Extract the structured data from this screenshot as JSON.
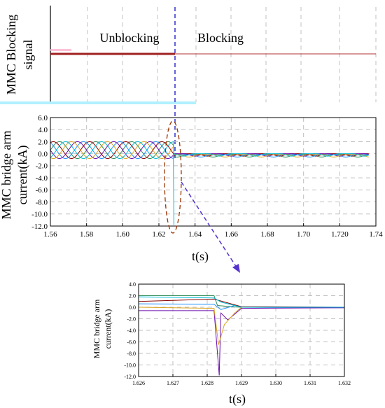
{
  "top_panel": {
    "ylabel_line1": "MMC Blocking",
    "ylabel_line2": "signal",
    "state_unblocking": "Unblocking",
    "state_blocking": "Blocking"
  },
  "colors": {
    "signal_line": "#a02020",
    "blocking_line": "#b03030",
    "blue_marker": "#3333cc",
    "ellipse": "#993300",
    "arrow": "#5533cc",
    "grid": "#c0c0c0",
    "cyan_bar": "#b0f0ff",
    "series": [
      "#2e8b57",
      "#8b0000",
      "#1e90ff",
      "#6a0dad",
      "#daa520",
      "#00bcd4"
    ]
  },
  "chart_data": [
    {
      "type": "line",
      "title": "",
      "xlabel": "t(s)",
      "ylabel_line1": "MMC bridge arm",
      "ylabel_line2": "current(kA)",
      "xlim": [
        1.56,
        1.74
      ],
      "ylim": [
        -12.0,
        6.0
      ],
      "x_ticks": [
        1.56,
        1.58,
        1.6,
        1.62,
        1.64,
        1.66,
        1.68,
        1.7,
        1.72,
        1.74
      ],
      "x_tick_labels": [
        "1.56",
        "1.58",
        "1.60",
        "1.62",
        "1.64",
        "1.66",
        "1.68",
        "1.70",
        "1.720",
        "1.74"
      ],
      "y_ticks": [
        6.0,
        4.0,
        2.0,
        0.0,
        -2.0,
        -4.0,
        -6.0,
        -8.0,
        -10.0,
        -12.0
      ],
      "y_tick_labels": [
        "6.0",
        "4.0",
        "2.0",
        "0.0",
        "-2.0",
        "-4.0",
        "-6.0",
        "-8.0",
        "-10.0",
        "-12.0"
      ],
      "grid": true,
      "blocking_time": 1.628,
      "prefault": {
        "amplitude_kA": 1.4,
        "offset_kA": 0.6,
        "frequency_hz": 50
      },
      "postblock_level_kA": -0.55,
      "peak_min_kA": -11.8
    },
    {
      "type": "line",
      "title": "",
      "xlabel": "t(s)",
      "ylabel_line1": "MMC bridge arm",
      "ylabel_line2": "current(kA)",
      "xlim": [
        1.626,
        1.632
      ],
      "ylim": [
        -12.0,
        4.0
      ],
      "x_ticks": [
        1.626,
        1.627,
        1.628,
        1.629,
        1.63,
        1.631,
        1.632
      ],
      "x_tick_labels": [
        "1.626",
        "1.627",
        "1.628",
        "1.629",
        "1.630",
        "1.631",
        "1.632"
      ],
      "y_ticks": [
        4.0,
        2.0,
        0.0,
        -2.0,
        -4.0,
        -6.0,
        -8.0,
        -10.0,
        -12.0
      ],
      "y_tick_labels": [
        "4.0",
        "2.0",
        "0.0",
        "-2.0",
        "-4.0",
        "-6.0",
        "-8.0",
        "-10.0",
        "-12.0"
      ],
      "grid": true,
      "blocking_time": 1.6283,
      "series": [
        {
          "points": [
            [
              1.626,
              2.0
            ],
            [
              1.6282,
              2.0
            ],
            [
              1.6283,
              0.3
            ],
            [
              1.6288,
              0.05
            ],
            [
              1.629,
              0.0
            ],
            [
              1.632,
              0.0
            ]
          ]
        },
        {
          "points": [
            [
              1.626,
              1.0
            ],
            [
              1.6282,
              1.4
            ],
            [
              1.629,
              0.1
            ],
            [
              1.632,
              0.0
            ]
          ]
        },
        {
          "points": [
            [
              1.626,
              0.6
            ],
            [
              1.6282,
              0.5
            ],
            [
              1.6284,
              -0.4
            ],
            [
              1.6288,
              0.3
            ],
            [
              1.629,
              0.0
            ],
            [
              1.632,
              -0.1
            ]
          ]
        },
        {
          "points": [
            [
              1.626,
              -0.6
            ],
            [
              1.6282,
              -0.6
            ],
            [
              1.62835,
              -11.8
            ],
            [
              1.6284,
              -1.0
            ],
            [
              1.6286,
              -2.2
            ],
            [
              1.629,
              -0.2
            ],
            [
              1.632,
              -0.1
            ]
          ]
        },
        {
          "points": [
            [
              1.626,
              0.0
            ],
            [
              1.6282,
              -0.2
            ],
            [
              1.62833,
              -6.5
            ],
            [
              1.6285,
              -3.0
            ],
            [
              1.6288,
              -1.0
            ],
            [
              1.629,
              0.0
            ],
            [
              1.632,
              0.0
            ]
          ]
        },
        {
          "points": [
            [
              1.626,
              1.8
            ],
            [
              1.6282,
              1.6
            ],
            [
              1.6284,
              0.9
            ],
            [
              1.6288,
              0.3
            ],
            [
              1.629,
              0.0
            ],
            [
              1.632,
              0.0
            ]
          ]
        }
      ]
    }
  ]
}
